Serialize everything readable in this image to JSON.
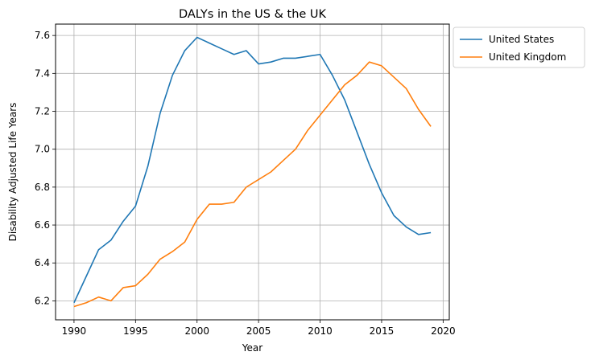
{
  "chart_data": {
    "type": "line",
    "title": "DALYs in the US & the UK",
    "xlabel": "Year",
    "ylabel": "Disability Adjusted Life Years",
    "xlim": [
      1988.5,
      2020.5
    ],
    "ylim": [
      6.1,
      7.66
    ],
    "xticks": [
      1990,
      1995,
      2000,
      2005,
      2010,
      2015,
      2020
    ],
    "yticks": [
      6.2,
      6.4,
      6.6,
      6.8,
      7.0,
      7.2,
      7.4,
      7.6
    ],
    "grid": true,
    "legend_position": "outside-upper-right",
    "x": [
      1990,
      1991,
      1992,
      1993,
      1994,
      1995,
      1996,
      1997,
      1998,
      1999,
      2000,
      2001,
      2002,
      2003,
      2004,
      2005,
      2006,
      2007,
      2008,
      2009,
      2010,
      2011,
      2012,
      2013,
      2014,
      2015,
      2016,
      2017,
      2018,
      2019
    ],
    "series": [
      {
        "name": "United States",
        "color": "#1f77b4",
        "values": [
          6.19,
          6.33,
          6.47,
          6.52,
          6.62,
          6.7,
          6.91,
          7.19,
          7.39,
          7.52,
          7.59,
          7.56,
          7.53,
          7.5,
          7.52,
          7.45,
          7.46,
          7.48,
          7.48,
          7.49,
          7.5,
          7.39,
          7.26,
          7.09,
          6.92,
          6.77,
          6.65,
          6.59,
          6.55,
          6.56
        ]
      },
      {
        "name": "United Kingdom",
        "color": "#ff7f0e",
        "values": [
          6.17,
          6.19,
          6.22,
          6.2,
          6.27,
          6.28,
          6.34,
          6.42,
          6.46,
          6.51,
          6.63,
          6.71,
          6.71,
          6.72,
          6.8,
          6.84,
          6.88,
          6.94,
          7.0,
          7.1,
          7.18,
          7.26,
          7.34,
          7.39,
          7.46,
          7.44,
          7.38,
          7.32,
          7.21,
          7.12
        ]
      }
    ]
  }
}
